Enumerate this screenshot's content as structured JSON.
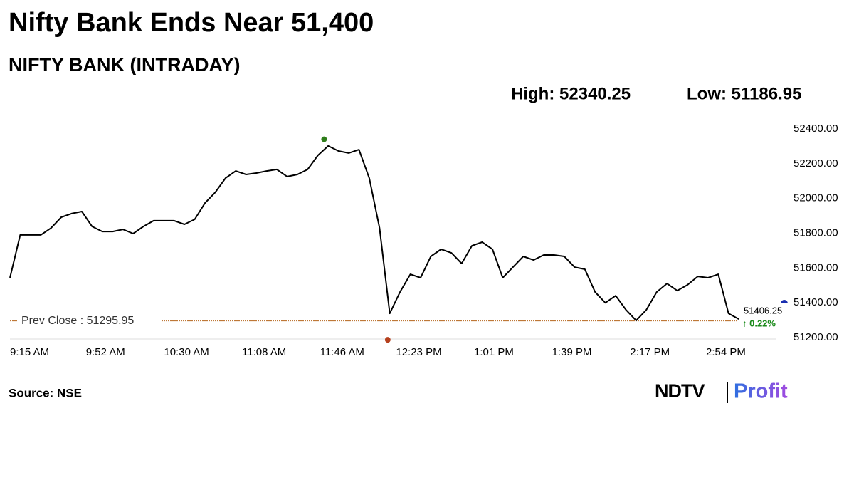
{
  "chart_data": {
    "type": "line",
    "title": "Nifty Bank Ends Near 51,400",
    "subtitle": "NIFTY BANK (INTRADAY)",
    "high": {
      "value": 52340.25,
      "label": "High: 52340.25",
      "x": "11:48 AM"
    },
    "low": {
      "value": 51186.95,
      "label": "Low: 51186.95",
      "x": "12:19 PM"
    },
    "prev_close": {
      "value": 51295.95,
      "label": "Prev Close : 51295.95"
    },
    "last_price": "51406.25",
    "change": "↑ 0.22%",
    "source": "Source: NSE",
    "brand": [
      "NDTV",
      "Profit"
    ],
    "color": "#000000",
    "x": [
      "9:15 AM",
      "9:20 AM",
      "9:25 AM",
      "9:30 AM",
      "9:35 AM",
      "9:40 AM",
      "9:45 AM",
      "9:50 AM",
      "9:55 AM",
      "10:00 AM",
      "10:05 AM",
      "10:10 AM",
      "10:15 AM",
      "10:20 AM",
      "10:25 AM",
      "10:30 AM",
      "10:35 AM",
      "10:40 AM",
      "10:45 AM",
      "10:50 AM",
      "10:55 AM",
      "11:00 AM",
      "11:05 AM",
      "11:10 AM",
      "11:15 AM",
      "11:20 AM",
      "11:25 AM",
      "11:30 AM",
      "11:35 AM",
      "11:40 AM",
      "11:45 AM",
      "11:50 AM",
      "11:55 AM",
      "12:00 PM",
      "12:05 PM",
      "12:10 PM",
      "12:15 PM",
      "12:20 PM",
      "12:25 PM",
      "12:30 PM",
      "12:35 PM",
      "12:40 PM",
      "12:45 PM",
      "12:50 PM",
      "12:55 PM",
      "1:00 PM",
      "1:05 PM",
      "1:10 PM",
      "1:15 PM",
      "1:20 PM",
      "1:25 PM",
      "1:30 PM",
      "1:35 PM",
      "1:40 PM",
      "1:45 PM",
      "1:50 PM",
      "1:55 PM",
      "2:00 PM",
      "2:05 PM",
      "2:10 PM",
      "2:15 PM",
      "2:20 PM",
      "2:25 PM",
      "2:30 PM",
      "2:35 PM",
      "2:40 PM",
      "2:45 PM",
      "2:50 PM",
      "2:55 PM",
      "3:00 PM",
      "3:05 PM",
      "3:10 PM"
    ],
    "values": [
      51544,
      51790,
      51790,
      51790,
      51830,
      51892,
      51913,
      51925,
      51839,
      51810,
      51810,
      51822,
      51798,
      51839,
      51872,
      51872,
      51872,
      51851,
      51880,
      51974,
      52035,
      52117,
      52158,
      52138,
      52146,
      52158,
      52167,
      52126,
      52138,
      52167,
      52248,
      52302,
      52273,
      52261,
      52281,
      52117,
      51831,
      51339,
      51462,
      51564,
      51544,
      51667,
      51708,
      51687,
      51626,
      51728,
      51749,
      51708,
      51544,
      51605,
      51667,
      51646,
      51675,
      51675,
      51667,
      51605,
      51593,
      51462,
      51400,
      51441,
      51360,
      51298,
      51360,
      51462,
      51511,
      51470,
      51503,
      51552,
      51544,
      51564,
      51339,
      51306
    ],
    "xticks": [
      "9:15 AM",
      "9:52 AM",
      "10:30 AM",
      "11:08 AM",
      "11:46 AM",
      "12:23 PM",
      "1:01 PM",
      "1:39 PM",
      "2:17 PM",
      "2:54 PM"
    ],
    "ylim": [
      51200,
      52400
    ],
    "yticks": [
      {
        "value": 51200,
        "label": "51200.00"
      },
      {
        "value": 51400,
        "label": "51400.00"
      },
      {
        "value": 51600,
        "label": "51600.00"
      },
      {
        "value": 51800,
        "label": "51800.00"
      },
      {
        "value": 52000,
        "label": "52000.00"
      },
      {
        "value": 52200,
        "label": "52200.00"
      },
      {
        "value": 52400,
        "label": "52400.00"
      }
    ]
  }
}
